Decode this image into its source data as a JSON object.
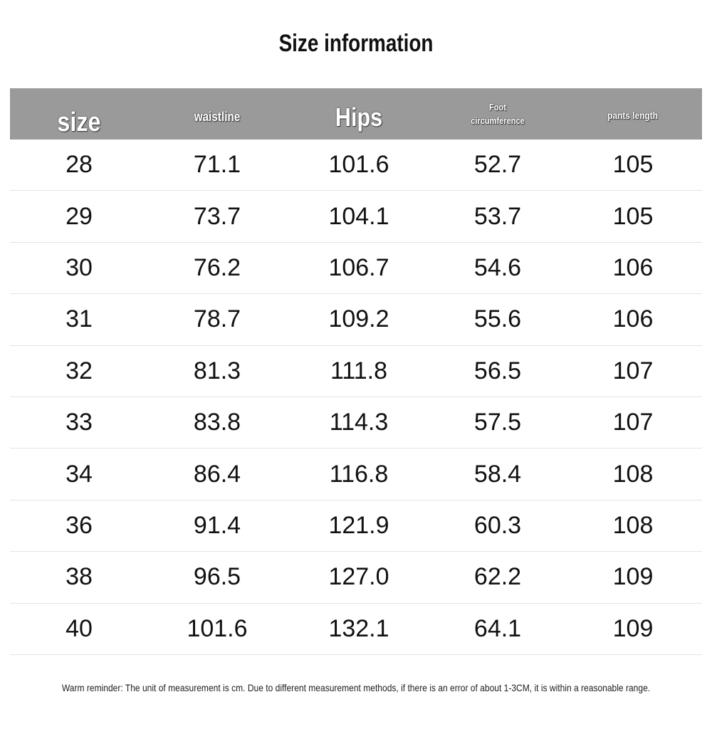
{
  "header": {
    "title": "Size information"
  },
  "table": {
    "columns": [
      "size",
      "waistline",
      "Hips",
      "Foot circumference",
      "pants length"
    ],
    "rows": [
      [
        "28",
        "71.1",
        "101.6",
        "52.7",
        "105"
      ],
      [
        "29",
        "73.7",
        "104.1",
        "53.7",
        "105"
      ],
      [
        "30",
        "76.2",
        "106.7",
        "54.6",
        "106"
      ],
      [
        "31",
        "78.7",
        "109.2",
        "55.6",
        "106"
      ],
      [
        "32",
        "81.3",
        "111.8",
        "56.5",
        "107"
      ],
      [
        "33",
        "83.8",
        "114.3",
        "57.5",
        "107"
      ],
      [
        "34",
        "86.4",
        "116.8",
        "58.4",
        "108"
      ],
      [
        "36",
        "91.4",
        "121.9",
        "60.3",
        "108"
      ],
      [
        "38",
        "96.5",
        "127.0",
        "62.2",
        "109"
      ],
      [
        "40",
        "101.6",
        "132.1",
        "64.1",
        "109"
      ]
    ]
  },
  "footer": {
    "note": "Warm reminder: The unit of measurement is cm. Due to different measurement methods, if there is an error of about 1-3CM, it is within a reasonable range."
  }
}
